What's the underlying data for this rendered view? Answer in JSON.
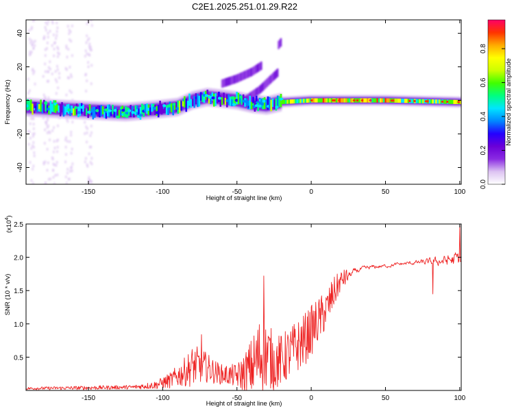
{
  "figure": {
    "title": "C2E1.2025.251.01.29.R22"
  },
  "chart_data": [
    {
      "type": "heatmap",
      "name": "spectrogram",
      "title": "C2E1.2025.251.01.29.R22",
      "xlabel": "Height of straight line (km)",
      "ylabel": "Frequency (Hz)",
      "xlim": [
        -192,
        101
      ],
      "ylim": [
        -50,
        48
      ],
      "xticks": [
        -150,
        -100,
        -50,
        0,
        50,
        100
      ],
      "yticks": [
        -40,
        -20,
        0,
        20,
        40
      ],
      "xtick_labels": [
        "-150",
        "-100",
        "-50",
        "0",
        "50",
        "100"
      ],
      "ytick_labels": [
        "-40",
        "-20",
        "0",
        "20",
        "40"
      ],
      "ridge": {
        "description": "dominant signal band frequency vs height",
        "x": [
          -192,
          -150,
          -125,
          -100,
          -90,
          -80,
          -70,
          -60,
          -50,
          -40,
          -30,
          -20,
          0,
          50,
          100
        ],
        "y": [
          -4,
          -6,
          -7,
          -5,
          -4,
          0,
          2,
          1,
          0,
          -2,
          -3,
          -1,
          0,
          0,
          -1
        ]
      },
      "secondary_branches": [
        {
          "x": [
            -60,
            -50,
            -40,
            -33
          ],
          "y": [
            10,
            13,
            17,
            21
          ]
        },
        {
          "x": [
            -45,
            -35,
            -28,
            -22
          ],
          "y": [
            0,
            6,
            12,
            17
          ]
        },
        {
          "x": [
            -22,
            -20
          ],
          "y": [
            33,
            35
          ]
        }
      ],
      "vertical_noise_columns_x": [
        -188,
        -178,
        -172,
        -163,
        -150
      ],
      "colorbar": {
        "label": "Normalized spectral amplitude",
        "range": [
          0,
          0.97
        ],
        "ticks": [
          0,
          0.2,
          0.4,
          0.6,
          0.8
        ],
        "tick_labels": [
          "0.0",
          "0.2",
          "0.4",
          "0.6",
          "0.8"
        ],
        "colormap": [
          "#ffffff",
          "#dcc3f2",
          "#8a2be2",
          "#6a00d8",
          "#2400ff",
          "#0088ff",
          "#00e5ff",
          "#00ff80",
          "#40ff00",
          "#ccff00",
          "#ffff00",
          "#ffaa00",
          "#ff3300",
          "#ff0066"
        ]
      }
    },
    {
      "type": "line",
      "name": "snr",
      "xlabel": "Height of straight line (km)",
      "ylabel": "SNR (10 * v/v)",
      "exponent_label": "(x10",
      "exponent_power": "4",
      "exponent_close": ")",
      "xlim": [
        -192,
        101
      ],
      "ylim": [
        0,
        2.5
      ],
      "xticks": [
        -150,
        -100,
        -50,
        0,
        50,
        100
      ],
      "yticks": [
        0.5,
        1.0,
        1.5,
        2.0,
        2.5
      ],
      "xtick_labels": [
        "-150",
        "-100",
        "-50",
        "0",
        "50",
        "100"
      ],
      "ytick_labels": [
        "0.5",
        "1.0",
        "1.5",
        "2.0",
        "2.5"
      ],
      "line_color": "#ee2222",
      "envelope": {
        "description": "mean level and noise amplitude of the SNR trace (x10^4)",
        "x": [
          -192,
          -150,
          -120,
          -105,
          -95,
          -85,
          -80,
          -75,
          -70,
          -65,
          -60,
          -55,
          -50,
          -45,
          -40,
          -35,
          -30,
          -25,
          -20,
          -15,
          -10,
          -5,
          0,
          5,
          10,
          15,
          20,
          30,
          40,
          50,
          60,
          70,
          80,
          90,
          95,
          100
        ],
        "mean": [
          0.03,
          0.04,
          0.05,
          0.08,
          0.15,
          0.28,
          0.36,
          0.38,
          0.34,
          0.28,
          0.24,
          0.23,
          0.22,
          0.26,
          0.35,
          0.5,
          0.55,
          0.42,
          0.45,
          0.55,
          0.65,
          0.75,
          0.9,
          1.05,
          1.2,
          1.45,
          1.65,
          1.8,
          1.85,
          1.87,
          1.9,
          1.92,
          1.93,
          1.95,
          1.96,
          1.97
        ],
        "amplitude": [
          0.02,
          0.03,
          0.03,
          0.06,
          0.12,
          0.22,
          0.3,
          0.28,
          0.22,
          0.18,
          0.15,
          0.16,
          0.18,
          0.3,
          0.45,
          0.6,
          0.55,
          0.42,
          0.4,
          0.4,
          0.4,
          0.4,
          0.38,
          0.35,
          0.3,
          0.25,
          0.15,
          0.08,
          0.06,
          0.05,
          0.05,
          0.06,
          0.1,
          0.15,
          0.2,
          0.25
        ]
      },
      "peaks": [
        {
          "x": -32,
          "y": 1.72
        },
        {
          "x": -74,
          "y": 0.84
        },
        {
          "x": 82,
          "y": 1.45
        },
        {
          "x": 100,
          "y": 2.48
        }
      ]
    }
  ]
}
